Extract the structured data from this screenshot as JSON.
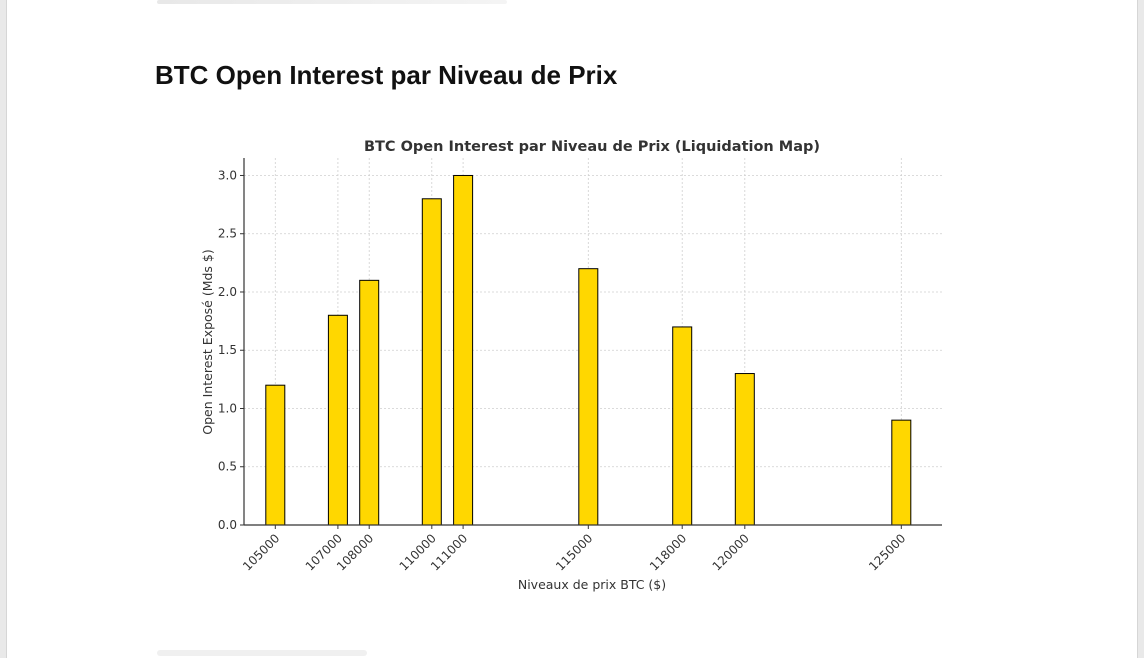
{
  "page": {
    "heading": "BTC Open Interest par Niveau de Prix"
  },
  "colors": {
    "bar_fill": "#FFD700",
    "bar_edge": "#000000",
    "grid": "#cfcfcf",
    "text": "#333333"
  },
  "chart_data": {
    "type": "bar",
    "title": "BTC Open Interest par Niveau de Prix (Liquidation Map)",
    "xlabel": "Niveaux de prix BTC ($)",
    "ylabel": "Open Interest Exposé (Mds $)",
    "x_scale": "numeric",
    "xlim": [
      104000,
      126300
    ],
    "ylim": [
      0,
      3.15
    ],
    "grid": true,
    "yticks": [
      "0.0",
      "0.5",
      "1.0",
      "1.5",
      "2.0",
      "2.5",
      "3.0"
    ],
    "points": [
      {
        "x": 105000,
        "label": "105000",
        "value": 1.2
      },
      {
        "x": 107000,
        "label": "107000",
        "value": 1.8
      },
      {
        "x": 108000,
        "label": "108000",
        "value": 2.1
      },
      {
        "x": 110000,
        "label": "110000",
        "value": 2.8
      },
      {
        "x": 111000,
        "label": "111000",
        "value": 3.0
      },
      {
        "x": 115000,
        "label": "115000",
        "value": 2.2
      },
      {
        "x": 118000,
        "label": "118000",
        "value": 1.7
      },
      {
        "x": 120000,
        "label": "120000",
        "value": 1.3
      },
      {
        "x": 125000,
        "label": "125000",
        "value": 0.9
      }
    ]
  }
}
